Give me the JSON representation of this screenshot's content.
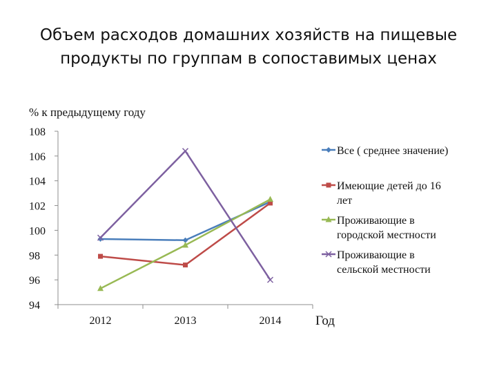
{
  "slide": {
    "title_line1": "Объем расходов домашних хозяйств на пищевые",
    "title_line2": "продукты по группам в сопоставимых ценах"
  },
  "chart_data": {
    "type": "line",
    "ylabel": "% к предыдущему году",
    "xlabel": "Год",
    "categories": [
      "2012",
      "2013",
      "2014"
    ],
    "ylim": [
      94,
      108
    ],
    "yticks": [
      "94",
      "96",
      "98",
      "100",
      "102",
      "104",
      "106",
      "108"
    ],
    "grid": false,
    "legend_position": "right",
    "series": [
      {
        "name": "Все ( среднее значение)",
        "values": [
          99.3,
          99.2,
          102.3
        ],
        "color": "#4a7ebb",
        "marker": "diamond"
      },
      {
        "name": "Имеющие детей до 16 лет",
        "values": [
          97.9,
          97.2,
          102.2
        ],
        "color": "#be4b48",
        "marker": "square"
      },
      {
        "name": "Проживающие в городской местности",
        "values": [
          95.3,
          98.8,
          102.5
        ],
        "color": "#98b954",
        "marker": "triangle"
      },
      {
        "name": "Проживающие в сельской местности",
        "values": [
          99.4,
          106.4,
          96.0
        ],
        "color": "#7d60a0",
        "marker": "x"
      }
    ],
    "legend_lines": [
      [
        "Все ( среднее значение)"
      ],
      [
        "Имеющие детей до 16",
        "лет"
      ],
      [
        "Проживающие в",
        "городской местности"
      ],
      [
        "Проживающие в",
        "сельской местности"
      ]
    ]
  }
}
